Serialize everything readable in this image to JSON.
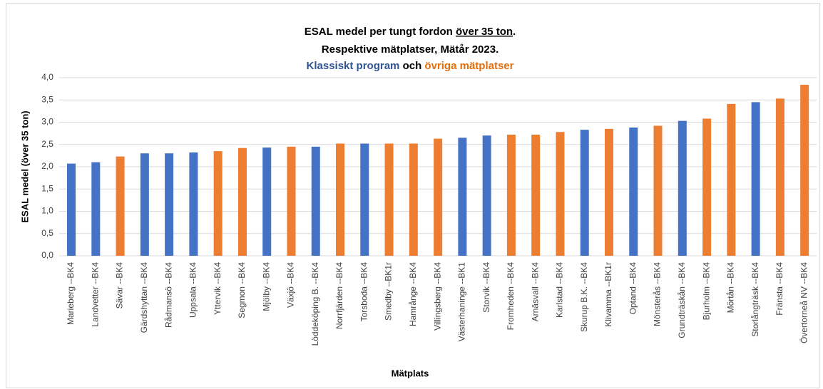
{
  "chart_data": {
    "type": "bar",
    "title": [
      [
        "ESAL medel per tungt fordon",
        "över 35 ton",
        "."
      ],
      [
        "Respektive mätplatser, Mätår 2023."
      ],
      [
        "Klassiskt program",
        "och",
        "övriga mätplatser"
      ]
    ],
    "xlabel": "Mätplats",
    "ylabel": "ESAL medel (över 35 ton)",
    "categories": [
      "Marieberg --BK4",
      "Landvetter --BK4",
      "Sävar --BK4",
      "Gärdshyttan --BK4",
      "Rådmansö --BK4",
      "Uppsala --BK4",
      "Yttervik --BK4",
      "Segmon --BK4",
      "Mjölby --BK4",
      "Växjö --BK4",
      "Löddeköping B. --BK4",
      "Norrfjärden --BK4",
      "Torsboda --BK4",
      "Smedby --BK1r",
      "Hamrånge --BK4",
      "Villingsberg --BK4",
      "Västerhaninge --BK1",
      "Storvik --BK4",
      "Fromheden --BK4",
      "Arnäsvall --BK4",
      "Karlstad --BK4",
      "Skurup B.K. --BK4",
      "Klivamma --BK1r",
      "Optand --BK4",
      "Mönsterås --BK4",
      "Grundträskån --BK4",
      "Bjurholm --BK4",
      "Mörtån --BK4",
      "Storlångträsk --BK4",
      "Fränsta --BK4",
      "Övertorneå NV --BK4"
    ],
    "values": [
      2.07,
      2.1,
      2.23,
      2.3,
      2.3,
      2.32,
      2.35,
      2.42,
      2.43,
      2.45,
      2.45,
      2.52,
      2.52,
      2.52,
      2.52,
      2.63,
      2.65,
      2.7,
      2.72,
      2.72,
      2.78,
      2.83,
      2.85,
      2.88,
      2.92,
      3.03,
      3.08,
      3.41,
      3.45,
      3.53,
      3.84
    ],
    "colors": [
      "#4472c4",
      "#4472c4",
      "#ed7d31",
      "#4472c4",
      "#4472c4",
      "#4472c4",
      "#ed7d31",
      "#ed7d31",
      "#4472c4",
      "#ed7d31",
      "#4472c4",
      "#ed7d31",
      "#4472c4",
      "#ed7d31",
      "#ed7d31",
      "#ed7d31",
      "#4472c4",
      "#4472c4",
      "#ed7d31",
      "#ed7d31",
      "#ed7d31",
      "#4472c4",
      "#ed7d31",
      "#4472c4",
      "#ed7d31",
      "#4472c4",
      "#ed7d31",
      "#ed7d31",
      "#4472c4",
      "#ed7d31",
      "#ed7d31"
    ],
    "ylim": [
      0,
      4
    ],
    "yticks": [
      {
        "value": 0,
        "label": "0,0"
      },
      {
        "value": 0.5,
        "label": "0,5"
      },
      {
        "value": 1,
        "label": "1,0"
      },
      {
        "value": 1.5,
        "label": "1,5"
      },
      {
        "value": 2,
        "label": "2,0"
      },
      {
        "value": 2.5,
        "label": "2,5"
      },
      {
        "value": 3,
        "label": "3,0"
      },
      {
        "value": 3.5,
        "label": "3,5"
      },
      {
        "value": 4,
        "label": "4,0"
      }
    ],
    "grid": true
  }
}
